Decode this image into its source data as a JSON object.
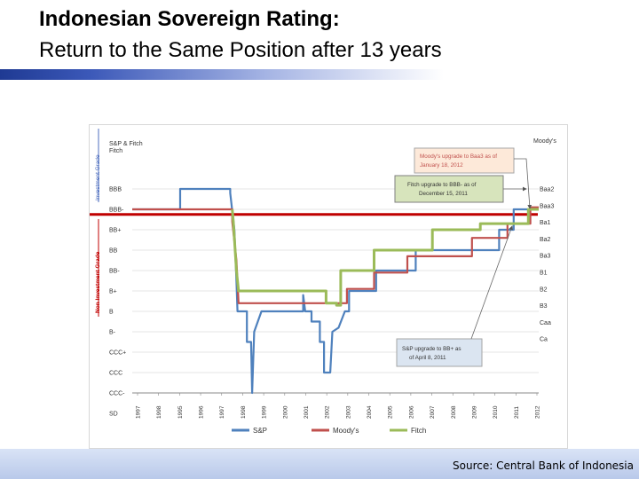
{
  "slide": {
    "title": "Indonesian Sovereign Rating:",
    "subtitle": "Return to the Same Position after 13 years",
    "source": "Source: Central Bank of Indonesia"
  },
  "chart_data": {
    "type": "line",
    "left_axis_title": "S&P & Fitch",
    "right_axis_title": "Moody's",
    "investment_grade_label": "Investment Grade",
    "non_investment_grade_label": "Non Investment Grade",
    "left_levels": [
      "BBB",
      "BBB-",
      "BB+",
      "BB",
      "BB-",
      "B+",
      "B",
      "B-",
      "CCC+",
      "CCC",
      "CCC-",
      "SD"
    ],
    "right_levels": [
      "Baa2",
      "Baa3",
      "Ba1",
      "Ba2",
      "Ba3",
      "B1",
      "B2",
      "B3",
      "Caa",
      "Ca"
    ],
    "x_tick_labels": [
      "1997",
      "1998",
      "1995",
      "1996",
      "1997",
      "1998",
      "1999",
      "2000",
      "2001",
      "2002",
      "2003",
      "2004",
      "2005",
      "2006",
      "2007",
      "2008",
      "2009",
      "2010",
      "2011",
      "2012"
    ],
    "colors": {
      "sp": "#4f81bd",
      "moodys": "#c0504d",
      "fitch": "#9bbb59",
      "threshold": "#c00000"
    },
    "series": [
      {
        "name": "S&P",
        "points": [
          [
            1993.0,
            1
          ],
          [
            1995.3,
            1
          ],
          [
            1995.3,
            0
          ],
          [
            1997.7,
            0
          ],
          [
            1997.7,
            0.2
          ],
          [
            1997.9,
            2
          ],
          [
            1998.0,
            4.5
          ],
          [
            1998.05,
            6
          ],
          [
            1998.5,
            6
          ],
          [
            1998.5,
            7.5
          ],
          [
            1998.7,
            7.5
          ],
          [
            1998.75,
            10
          ],
          [
            1998.85,
            7
          ],
          [
            1999.2,
            6
          ],
          [
            2001.2,
            6
          ],
          [
            2001.2,
            5.2
          ],
          [
            2001.3,
            6
          ],
          [
            2001.6,
            6
          ],
          [
            2001.6,
            6.5
          ],
          [
            2002.0,
            6.5
          ],
          [
            2002.0,
            7.5
          ],
          [
            2002.2,
            7.5
          ],
          [
            2002.2,
            9
          ],
          [
            2002.5,
            9
          ],
          [
            2002.6,
            7
          ],
          [
            2002.9,
            6.8
          ],
          [
            2003.2,
            6
          ],
          [
            2003.4,
            6
          ],
          [
            2003.4,
            5
          ],
          [
            2004.7,
            5
          ],
          [
            2004.7,
            4
          ],
          [
            2006.6,
            4
          ],
          [
            2006.6,
            3
          ],
          [
            2010.6,
            3
          ],
          [
            2010.6,
            2
          ],
          [
            2011.3,
            2
          ],
          [
            2011.3,
            1
          ],
          [
            2012.2,
            1
          ]
        ]
      },
      {
        "name": "Moody's",
        "points": [
          [
            1993.0,
            1
          ],
          [
            1997.8,
            1
          ],
          [
            1997.8,
            1.6
          ],
          [
            1998.0,
            3.5
          ],
          [
            1998.1,
            5.6
          ],
          [
            2003.3,
            5.6
          ],
          [
            2003.3,
            4.9
          ],
          [
            2004.6,
            4.9
          ],
          [
            2004.6,
            4.1
          ],
          [
            2006.2,
            4.1
          ],
          [
            2006.2,
            3.3
          ],
          [
            2009.3,
            3.3
          ],
          [
            2009.3,
            2.4
          ],
          [
            2011.0,
            2.4
          ],
          [
            2011.0,
            1.7
          ],
          [
            2012.1,
            1.7
          ],
          [
            2012.1,
            0.9
          ],
          [
            2012.5,
            0.9
          ]
        ]
      },
      {
        "name": "Fitch",
        "points": [
          [
            1997.8,
            1
          ],
          [
            1997.85,
            1.6
          ],
          [
            1998.0,
            4
          ],
          [
            1998.1,
            5
          ],
          [
            2002.3,
            5
          ],
          [
            2002.3,
            5.6
          ],
          [
            2002.8,
            5.6
          ],
          [
            2002.8,
            5.7
          ],
          [
            2003.0,
            5.7
          ],
          [
            2003.0,
            4
          ],
          [
            2004.6,
            4
          ],
          [
            2004.6,
            3
          ],
          [
            2007.4,
            3
          ],
          [
            2007.4,
            2
          ],
          [
            2009.7,
            2
          ],
          [
            2009.7,
            1.7
          ],
          [
            2012.0,
            1.7
          ],
          [
            2012.0,
            1
          ],
          [
            2012.5,
            1
          ]
        ]
      }
    ],
    "annotations": [
      {
        "text": "Moody's upgrade to Baa3 as of January 18, 2012",
        "fill": "#fde9d9"
      },
      {
        "text": "Fitch upgrade to BBB- as of December 15, 2011",
        "fill": "#d7e4bc"
      },
      {
        "text": "S&P upgrade to BB+ as of April 8, 2011",
        "fill": "#dbe5f1"
      }
    ],
    "grid": true,
    "legend_position": "bottom"
  }
}
